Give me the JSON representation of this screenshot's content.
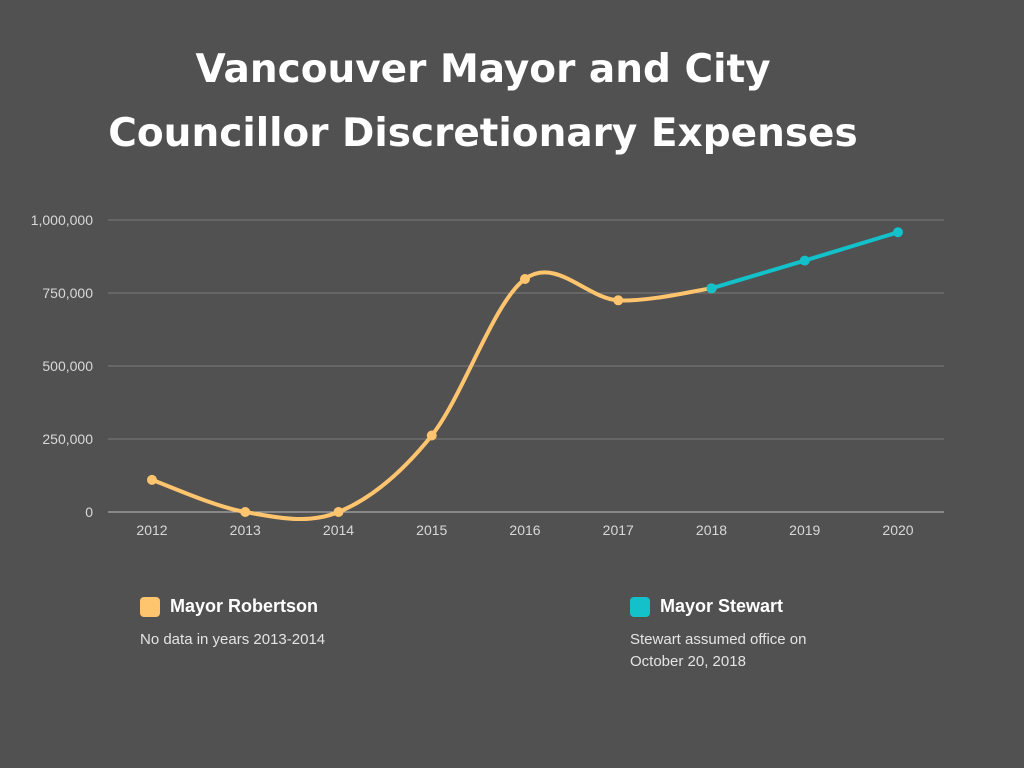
{
  "title": {
    "line1": "Vancouver Mayor and City",
    "line2": "Councillor Discretionary Expenses"
  },
  "chart_data": {
    "type": "line",
    "x": [
      "2012",
      "2013",
      "2014",
      "2015",
      "2016",
      "2017",
      "2018",
      "2019",
      "2020"
    ],
    "ylim": [
      0,
      1000000
    ],
    "yticks": [
      0,
      250000,
      500000,
      750000,
      1000000
    ],
    "ytick_labels": [
      "0",
      "250,000",
      "500,000",
      "750,000",
      "1,000,000"
    ],
    "grid": true,
    "series": [
      {
        "name": "Mayor Robertson",
        "color": "#FFC46E",
        "x": [
          "2012",
          "2013",
          "2014",
          "2015",
          "2016",
          "2017",
          "2018"
        ],
        "values": [
          110000,
          0,
          0,
          262000,
          798000,
          725000,
          766000
        ]
      },
      {
        "name": "Mayor Stewart",
        "color": "#12C1C9",
        "x": [
          "2018",
          "2019",
          "2020"
        ],
        "values": [
          766000,
          861000,
          958000
        ]
      }
    ]
  },
  "legend": {
    "robertson": {
      "label": "Mayor Robertson",
      "color": "#FFC46E",
      "note": "No data in years 2013-2014"
    },
    "stewart": {
      "label": "Mayor Stewart",
      "color": "#12C1C9",
      "note_line1": "Stewart assumed office on",
      "note_line2": "October 20, 2018"
    }
  }
}
